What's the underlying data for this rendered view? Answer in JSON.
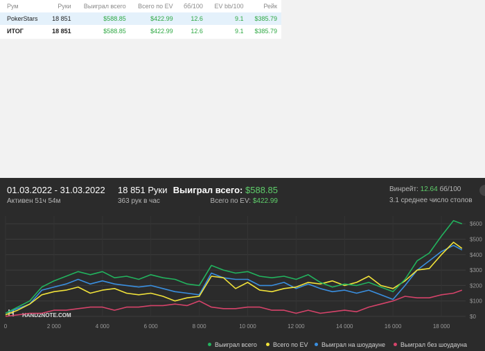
{
  "table": {
    "headers": [
      "Рум",
      "Руки",
      "Выиграл всего",
      "Всего по EV",
      "бб/100",
      "EV bb/100",
      "Рейк"
    ],
    "rows": [
      [
        "PokerStars",
        "18 851",
        "$588.85",
        "$422.99",
        "12.6",
        "9.1",
        "$385.79"
      ],
      [
        "ИТОГ",
        "18 851",
        "$588.85",
        "$422.99",
        "12.6",
        "9.1",
        "$385.79"
      ]
    ]
  },
  "stats": {
    "date_range": "01.03.2022 - 31.03.2022",
    "active": "Активен 51ч 54м",
    "hands": "18 851 Руки",
    "hands_per_hour": "363 рук в час",
    "won_label": "Выиграл всего:",
    "won_value": "$588.85",
    "ev_label": "Всего по EV:",
    "ev_value": "$422.99",
    "winrate_label": "Винрейт:",
    "winrate_value": "12.64",
    "winrate_unit": "бб/100",
    "avg_tables": "3.1 среднее число столов"
  },
  "watermark": "HAND2NOTE.COM",
  "colors": {
    "won": "#22b35e",
    "ev": "#f2e33a",
    "showdown": "#3a8fe0",
    "nonshowdown": "#d6436a"
  },
  "chart_data": {
    "type": "line",
    "xlim": [
      0,
      19000
    ],
    "ylim": [
      0,
      650
    ],
    "x_ticks": [
      "0",
      "2 000",
      "4 000",
      "6 000",
      "8 000",
      "10 000",
      "12 000",
      "14 000",
      "16 000",
      "18 000"
    ],
    "x_tick_values": [
      0,
      2000,
      4000,
      6000,
      8000,
      10000,
      12000,
      14000,
      16000,
      18000
    ],
    "y_ticks": [
      "$0",
      "$100",
      "$200",
      "$300",
      "$400",
      "$500",
      "$600"
    ],
    "y_tick_values": [
      0,
      100,
      200,
      300,
      400,
      500,
      600
    ],
    "series": [
      {
        "name": "Выиграл всего",
        "color": "#22b35e",
        "x": [
          0,
          500,
          1000,
          1500,
          2000,
          2500,
          3000,
          3500,
          4000,
          4500,
          5000,
          5500,
          6000,
          6500,
          7000,
          7500,
          8000,
          8500,
          9000,
          9500,
          10000,
          10500,
          11000,
          11500,
          12000,
          12500,
          13000,
          13500,
          14000,
          14500,
          15000,
          15500,
          16000,
          16500,
          17000,
          17500,
          18000,
          18500,
          18851
        ],
        "values": [
          20,
          60,
          100,
          190,
          230,
          260,
          290,
          270,
          290,
          250,
          260,
          240,
          270,
          250,
          240,
          210,
          200,
          330,
          300,
          280,
          290,
          260,
          250,
          260,
          240,
          270,
          220,
          190,
          210,
          200,
          220,
          190,
          160,
          240,
          360,
          410,
          520,
          620,
          600
        ]
      },
      {
        "name": "Всего по EV",
        "color": "#f2e33a",
        "x": [
          0,
          500,
          1000,
          1500,
          2000,
          2500,
          3000,
          3500,
          4000,
          4500,
          5000,
          5500,
          6000,
          6500,
          7000,
          7500,
          8000,
          8500,
          9000,
          9500,
          10000,
          10500,
          11000,
          11500,
          12000,
          12500,
          13000,
          13500,
          14000,
          14500,
          15000,
          15500,
          16000,
          16500,
          17000,
          17500,
          18000,
          18500,
          18851
        ],
        "values": [
          10,
          40,
          80,
          140,
          160,
          170,
          190,
          150,
          170,
          180,
          150,
          140,
          150,
          130,
          100,
          120,
          130,
          260,
          250,
          180,
          220,
          170,
          160,
          180,
          190,
          220,
          210,
          230,
          200,
          220,
          260,
          200,
          180,
          230,
          300,
          310,
          400,
          480,
          440
        ]
      },
      {
        "name": "Выиграл на шоудауне",
        "color": "#3a8fe0",
        "x": [
          0,
          500,
          1000,
          1500,
          2000,
          2500,
          3000,
          3500,
          4000,
          4500,
          5000,
          5500,
          6000,
          6500,
          7000,
          7500,
          8000,
          8500,
          9000,
          9500,
          10000,
          10500,
          11000,
          11500,
          12000,
          12500,
          13000,
          13500,
          14000,
          14500,
          15000,
          15500,
          16000,
          16500,
          17000,
          17500,
          18000,
          18500,
          18851
        ],
        "values": [
          20,
          50,
          80,
          170,
          190,
          210,
          240,
          210,
          230,
          210,
          200,
          190,
          200,
          180,
          160,
          150,
          140,
          280,
          250,
          240,
          240,
          200,
          200,
          220,
          180,
          210,
          180,
          160,
          170,
          150,
          170,
          140,
          110,
          200,
          300,
          360,
          420,
          460,
          430
        ]
      },
      {
        "name": "Выиграл без шоудауна",
        "color": "#d6436a",
        "x": [
          0,
          500,
          1000,
          1500,
          2000,
          2500,
          3000,
          3500,
          4000,
          4500,
          5000,
          5500,
          6000,
          6500,
          7000,
          7500,
          8000,
          8500,
          9000,
          9500,
          10000,
          10500,
          11000,
          11500,
          12000,
          12500,
          13000,
          13500,
          14000,
          14500,
          15000,
          15500,
          16000,
          16500,
          17000,
          17500,
          18000,
          18500,
          18851
        ],
        "values": [
          0,
          10,
          20,
          20,
          40,
          40,
          50,
          60,
          60,
          40,
          60,
          60,
          70,
          70,
          80,
          70,
          100,
          60,
          50,
          50,
          60,
          60,
          40,
          40,
          20,
          40,
          20,
          30,
          40,
          30,
          60,
          80,
          100,
          130,
          120,
          120,
          140,
          150,
          170
        ]
      }
    ]
  }
}
